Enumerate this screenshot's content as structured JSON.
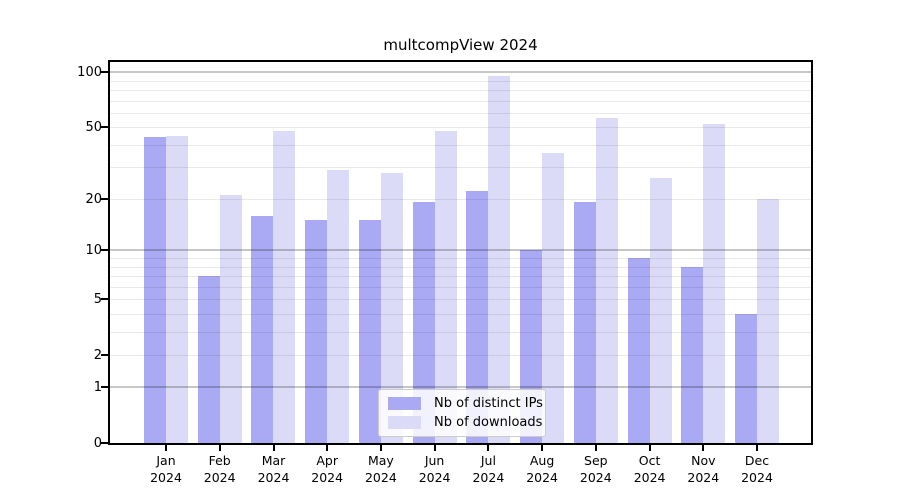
{
  "chart_data": {
    "type": "bar",
    "title": "multcompView 2024",
    "categories": [
      "Jan",
      "Feb",
      "Mar",
      "Apr",
      "May",
      "Jun",
      "Jul",
      "Aug",
      "Sep",
      "Oct",
      "Nov",
      "Dec"
    ],
    "x_tick_year": "2024",
    "series": [
      {
        "name": "Nb of distinct IPs",
        "color": "#a9a9f4",
        "values": [
          44,
          7,
          16,
          15,
          15,
          19,
          22,
          10,
          19,
          9,
          8,
          4
        ]
      },
      {
        "name": "Nb of downloads",
        "color": "#dbdbf8",
        "values": [
          45,
          21,
          48,
          29,
          28,
          48,
          96,
          36,
          56,
          26,
          52,
          20
        ]
      }
    ],
    "yscale": "log1p",
    "ylim": [
      0,
      115
    ],
    "y_ticks": [
      0,
      1,
      2,
      5,
      10,
      20,
      50,
      100
    ],
    "y_tick_labels": [
      "0",
      "1",
      "2",
      "5",
      "10",
      "20",
      "50",
      "100"
    ],
    "y_major_grid": [
      1,
      10,
      100
    ],
    "y_minor_grid": [
      2,
      3,
      4,
      5,
      6,
      7,
      8,
      9,
      20,
      30,
      40,
      50,
      60,
      70,
      80,
      90
    ],
    "grid": true,
    "legend_position": "bottom-center",
    "colors": {
      "axis": "#000000",
      "background": "#ffffff",
      "major_grid": "rgba(0,0,0,0.22)",
      "minor_grid": "rgba(0,0,0,0.085)",
      "legend_border": "#cccccc"
    }
  }
}
